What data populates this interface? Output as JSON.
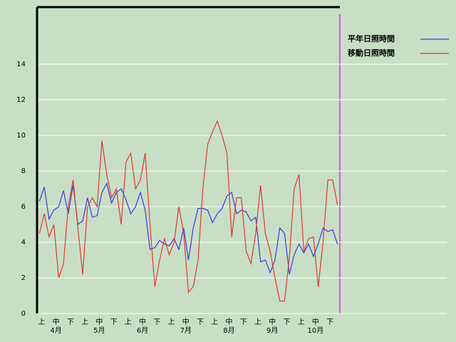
{
  "chart_data": {
    "type": "line",
    "categories": [
      "上",
      null,
      null,
      "中",
      null,
      null,
      "下",
      null,
      null,
      "上",
      null,
      null,
      "中",
      null,
      null,
      "下",
      null,
      null,
      "上",
      null,
      null,
      "中",
      null,
      null,
      "下",
      null,
      null,
      "上",
      null,
      null,
      "中",
      null,
      null,
      "下",
      null,
      null,
      "上",
      null,
      null,
      "中",
      null,
      null,
      "下",
      null,
      null,
      "上",
      null,
      null,
      "中",
      null,
      null,
      "下",
      null,
      null,
      "上",
      null,
      null,
      "中",
      null,
      null,
      "下",
      null,
      null
    ],
    "months": [
      "4月",
      "5月",
      "6月",
      "7月",
      "8月",
      "9月",
      "10月"
    ],
    "series": [
      {
        "name": "平年日照時間",
        "color": "#3a3adf",
        "values": [
          6.3,
          7.1,
          5.3,
          5.8,
          6.0,
          6.9,
          5.6,
          7.2,
          5.0,
          5.2,
          6.5,
          5.4,
          5.5,
          6.8,
          7.3,
          6.2,
          6.8,
          7.0,
          6.4,
          5.6,
          6.0,
          6.8,
          5.8,
          3.6,
          3.7,
          4.1,
          3.9,
          3.8,
          4.2,
          3.6,
          4.8,
          3.0,
          4.8,
          5.9,
          5.9,
          5.8,
          5.1,
          5.6,
          5.9,
          6.6,
          6.8,
          5.6,
          5.8,
          5.7,
          5.2,
          5.4,
          2.9,
          3.0,
          2.3,
          3.0,
          4.8,
          4.5,
          2.2,
          3.3,
          3.9,
          3.4,
          3.9,
          3.2,
          3.9,
          4.8,
          4.6,
          4.7,
          3.9
        ]
      },
      {
        "name": "移動日照時間",
        "color": "#e03a2a",
        "values": [
          4.5,
          5.6,
          4.3,
          5.0,
          2.0,
          2.8,
          6.0,
          7.5,
          4.8,
          2.2,
          6.0,
          6.5,
          6.0,
          9.7,
          7.8,
          6.5,
          7.0,
          5.0,
          8.5,
          9.0,
          7.0,
          7.5,
          9.0,
          5.0,
          1.5,
          3.0,
          4.2,
          3.3,
          4.0,
          6.0,
          4.5,
          1.2,
          1.5,
          3.0,
          7.0,
          9.5,
          10.2,
          10.8,
          10.0,
          9.0,
          4.3,
          6.5,
          6.5,
          3.5,
          2.8,
          4.5,
          7.2,
          4.5,
          3.5,
          2.0,
          0.7,
          0.7,
          3.2,
          7.0,
          7.8,
          3.5,
          4.2,
          4.3,
          1.5,
          4.0,
          7.5,
          7.5,
          6.1
        ]
      }
    ],
    "ylim": [
      0,
      17.2
    ],
    "yticks": [
      0,
      2,
      4,
      6,
      8,
      10,
      12,
      14
    ],
    "grid": true
  }
}
